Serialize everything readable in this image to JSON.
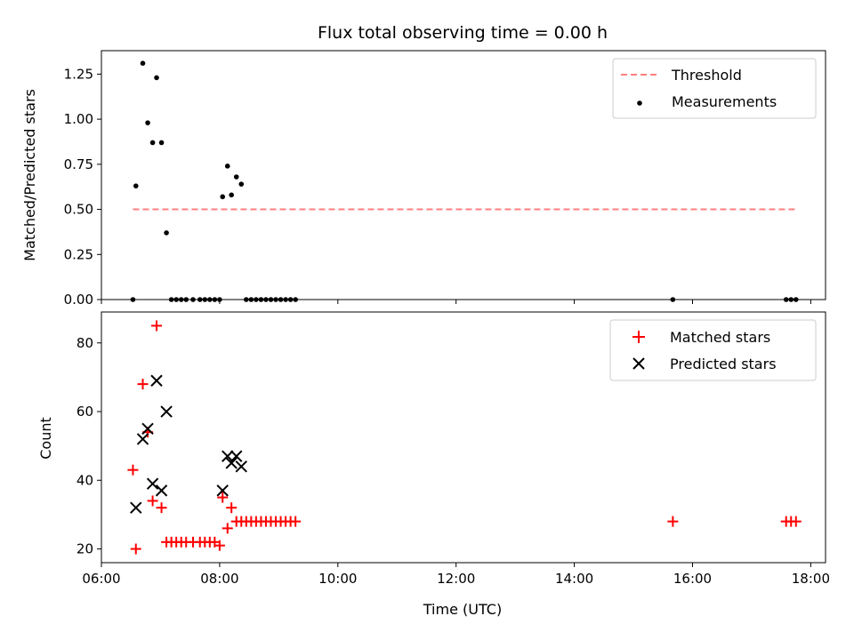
{
  "chart_data": [
    {
      "type": "scatter",
      "title": "Flux total observing time = 0.00 h",
      "xlabel": "",
      "ylabel": "Matched/Predicted stars",
      "xlim": [
        "06:00",
        "18:15"
      ],
      "ylim": [
        0,
        1.38
      ],
      "yticks": [
        "0.00",
        "0.25",
        "0.50",
        "0.75",
        "1.00",
        "1.25"
      ],
      "legend_position": "top-right",
      "series": [
        {
          "name": "Threshold",
          "style": "dashed-line",
          "color": "#ff7f7f",
          "x": [
            "06:32",
            "17:45"
          ],
          "y": [
            0.5,
            0.5
          ]
        },
        {
          "name": "Measurements",
          "style": "points",
          "color": "#000000",
          "x": [
            "06:32",
            "06:35",
            "06:42",
            "06:47",
            "06:52",
            "06:56",
            "07:01",
            "07:06",
            "07:11",
            "07:16",
            "07:21",
            "07:26",
            "07:33",
            "07:40",
            "07:45",
            "07:50",
            "07:55",
            "08:00",
            "08:03",
            "08:08",
            "08:12",
            "08:17",
            "08:22",
            "08:27",
            "08:32",
            "08:37",
            "08:42",
            "08:47",
            "08:52",
            "08:57",
            "09:02",
            "09:07",
            "09:12",
            "09:17",
            "15:40",
            "17:35",
            "17:40",
            "17:45"
          ],
          "y": [
            0.0,
            0.63,
            1.31,
            0.98,
            0.87,
            1.23,
            0.87,
            0.37,
            0.0,
            0.0,
            0.0,
            0.0,
            0.0,
            0.0,
            0.0,
            0.0,
            0.0,
            0.0,
            0.57,
            0.74,
            0.58,
            0.68,
            0.64,
            0.0,
            0.0,
            0.0,
            0.0,
            0.0,
            0.0,
            0.0,
            0.0,
            0.0,
            0.0,
            0.0,
            0.0,
            0.0,
            0.0,
            0.0
          ]
        }
      ]
    },
    {
      "type": "scatter",
      "title": "",
      "xlabel": "Time (UTC)",
      "ylabel": "Count",
      "xlim": [
        "06:00",
        "18:15"
      ],
      "ylim": [
        16,
        89
      ],
      "xticks": [
        "06:00",
        "08:00",
        "10:00",
        "12:00",
        "14:00",
        "16:00",
        "18:00"
      ],
      "yticks": [
        "20",
        "40",
        "60",
        "80"
      ],
      "legend_position": "top-right",
      "series": [
        {
          "name": "Matched stars",
          "marker": "plus",
          "color": "#ff0000",
          "x": [
            "06:32",
            "06:35",
            "06:42",
            "06:47",
            "06:52",
            "06:56",
            "07:01",
            "07:06",
            "07:11",
            "07:16",
            "07:21",
            "07:26",
            "07:33",
            "07:40",
            "07:45",
            "07:50",
            "07:55",
            "08:00",
            "08:03",
            "08:08",
            "08:12",
            "08:17",
            "08:22",
            "08:27",
            "08:32",
            "08:37",
            "08:42",
            "08:47",
            "08:52",
            "08:57",
            "09:02",
            "09:07",
            "09:12",
            "09:17",
            "15:40",
            "17:35",
            "17:40",
            "17:45"
          ],
          "y": [
            43,
            20,
            68,
            54,
            34,
            85,
            32,
            22,
            22,
            22,
            22,
            22,
            22,
            22,
            22,
            22,
            22,
            21,
            35,
            26,
            32,
            28,
            28,
            28,
            28,
            28,
            28,
            28,
            28,
            28,
            28,
            28,
            28,
            28,
            28,
            28,
            28,
            28
          ]
        },
        {
          "name": "Predicted stars",
          "marker": "x",
          "color": "#000000",
          "x": [
            "06:35",
            "06:42",
            "06:47",
            "06:52",
            "06:56",
            "07:01",
            "07:06",
            "08:03",
            "08:08",
            "08:12",
            "08:17",
            "08:22"
          ],
          "y": [
            32,
            52,
            55,
            39,
            69,
            37,
            60,
            37,
            47,
            45,
            47,
            44
          ]
        }
      ]
    }
  ]
}
